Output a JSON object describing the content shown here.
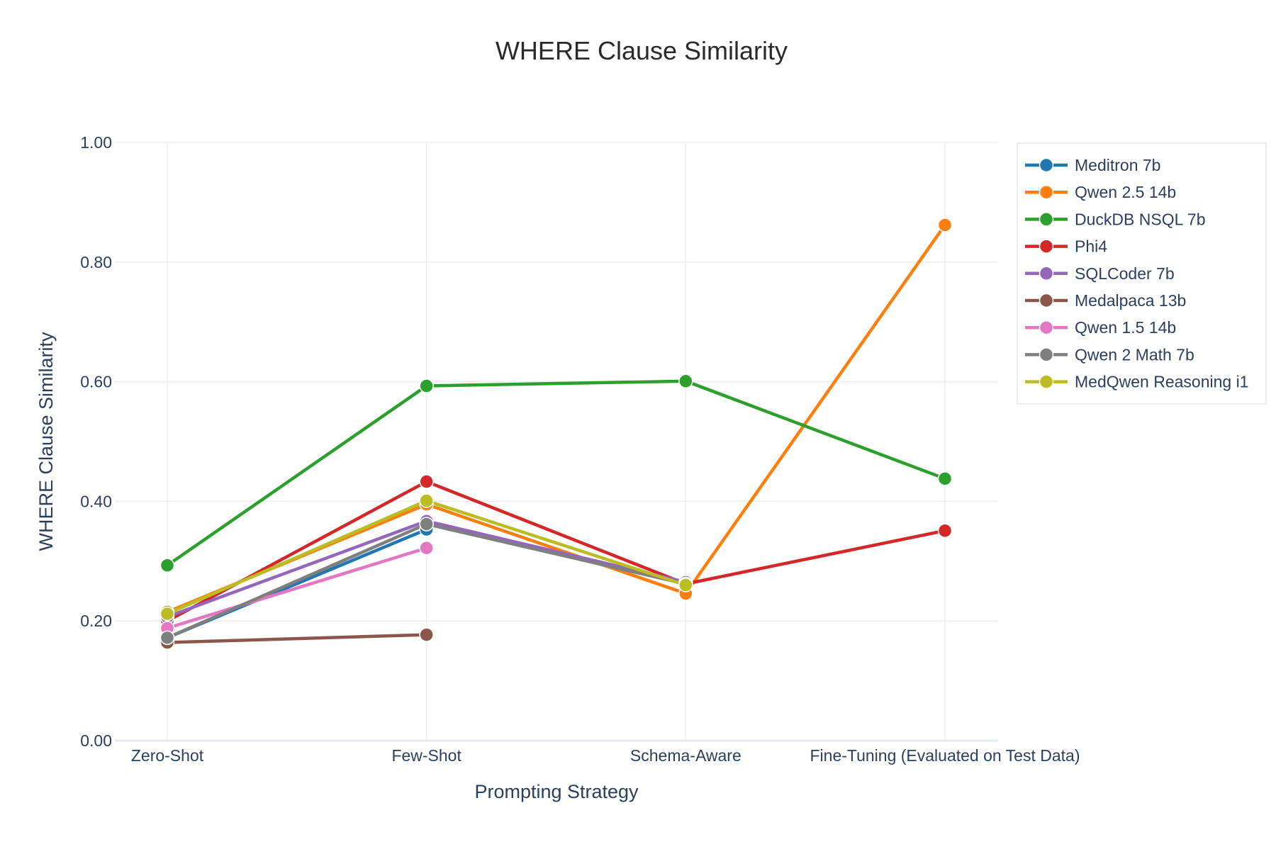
{
  "chart_data": {
    "type": "line",
    "title": "WHERE Clause Similarity",
    "xlabel": "Prompting Strategy",
    "ylabel": "WHERE Clause Similarity",
    "categories": [
      "Zero-Shot",
      "Few-Shot",
      "Schema-Aware",
      "Fine-Tuning (Evaluated on Test Data)"
    ],
    "ylim": [
      0,
      1
    ],
    "yticks": [
      "0.00",
      "0.20",
      "0.40",
      "0.60",
      "0.80",
      "1.00"
    ],
    "ytick_values": [
      0,
      0.2,
      0.4,
      0.6,
      0.8,
      1.0
    ],
    "grid": true,
    "legend_position": "top-right",
    "series": [
      {
        "name": "Meditron 7b",
        "color": "#1f77b4",
        "values": [
          0.172,
          0.353,
          null,
          null
        ]
      },
      {
        "name": "Qwen 2.5 14b",
        "color": "#ff7f0e",
        "values": [
          0.215,
          0.395,
          0.246,
          0.862
        ]
      },
      {
        "name": "DuckDB NSQL 7b",
        "color": "#2ca02c",
        "values": [
          0.293,
          0.593,
          0.601,
          0.438
        ]
      },
      {
        "name": "Phi4",
        "color": "#d62728",
        "values": [
          0.2,
          0.433,
          0.262,
          0.351
        ]
      },
      {
        "name": "SQLCoder 7b",
        "color": "#9467bd",
        "values": [
          0.207,
          0.367,
          0.265,
          null
        ]
      },
      {
        "name": "Medalpaca 13b",
        "color": "#8c564b",
        "values": [
          0.164,
          0.177,
          null,
          null
        ]
      },
      {
        "name": "Qwen 1.5 14b",
        "color": "#e377c2",
        "values": [
          0.188,
          0.322,
          null,
          null
        ]
      },
      {
        "name": "Qwen 2 Math 7b",
        "color": "#7f7f7f",
        "values": [
          0.172,
          0.362,
          0.262,
          null
        ]
      },
      {
        "name": "MedQwen Reasoning i1",
        "color": "#bcbd22",
        "values": [
          0.212,
          0.401,
          0.26,
          null
        ]
      }
    ]
  }
}
